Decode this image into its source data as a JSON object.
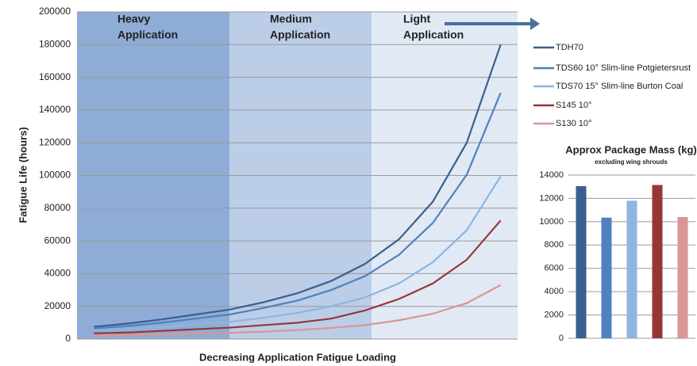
{
  "chart_data": [
    {
      "type": "line",
      "y_label": "Fatigue Life (hours)",
      "x_label": "Decreasing Application Fatigue Loading",
      "annotations": [
        [
          "Heavy",
          "Application"
        ],
        [
          "Medium",
          "Application"
        ],
        [
          "Light",
          "Application"
        ]
      ],
      "categories": [
        null,
        null,
        null,
        null,
        null,
        null,
        null,
        null,
        null,
        null,
        null,
        null,
        null
      ],
      "ylim": [
        0,
        200000
      ],
      "yticks": [
        0,
        20000,
        40000,
        60000,
        80000,
        100000,
        120000,
        140000,
        160000,
        180000,
        200000
      ],
      "grid": true,
      "legend": "right",
      "series": [
        {
          "name": "TDH70",
          "color": "#3a5f8c",
          "values": [
            7500,
            9500,
            12000,
            15000,
            18000,
            22500,
            28000,
            35500,
            46000,
            61000,
            84000,
            120000,
            180000
          ]
        },
        {
          "name": "TDS60 10° Slim-line Potgietersrust",
          "color": "#4f81bd",
          "values": [
            6500,
            8000,
            10000,
            12500,
            15000,
            19000,
            23500,
            30000,
            38500,
            51500,
            71000,
            100500,
            150500
          ]
        },
        {
          "name": "TDS70 15° Slim-line Burton Coal",
          "color": "#8db4e2",
          "values": [
            5000,
            6000,
            7500,
            9000,
            10500,
            13000,
            16000,
            20000,
            25500,
            34000,
            47000,
            66500,
            99500
          ]
        },
        {
          "name": "S145 10°",
          "color": "#953735",
          "values": [
            3500,
            4000,
            5000,
            6000,
            7000,
            8500,
            10000,
            12500,
            17500,
            24500,
            34000,
            48500,
            72500
          ]
        },
        {
          "name": "S130 10°",
          "color": "#d99694",
          "values": [
            2000,
            2500,
            2800,
            3200,
            3800,
            4500,
            5500,
            6800,
            8500,
            11500,
            15500,
            22000,
            33000
          ]
        }
      ]
    },
    {
      "type": "bar",
      "title": "Approx Package Mass (kg)",
      "subtitle": "excluding wing shrouds",
      "categories": [
        null,
        null,
        null,
        null,
        null
      ],
      "values": [
        13050,
        10350,
        11800,
        13150,
        10400
      ],
      "colors": [
        "#3a5f8c",
        "#4f81bd",
        "#8db4e2",
        "#953735",
        "#d99694"
      ],
      "ylim": [
        0,
        14000
      ],
      "yticks": [
        0,
        2000,
        4000,
        6000,
        8000,
        10000,
        12000,
        14000
      ],
      "grid": true
    }
  ]
}
